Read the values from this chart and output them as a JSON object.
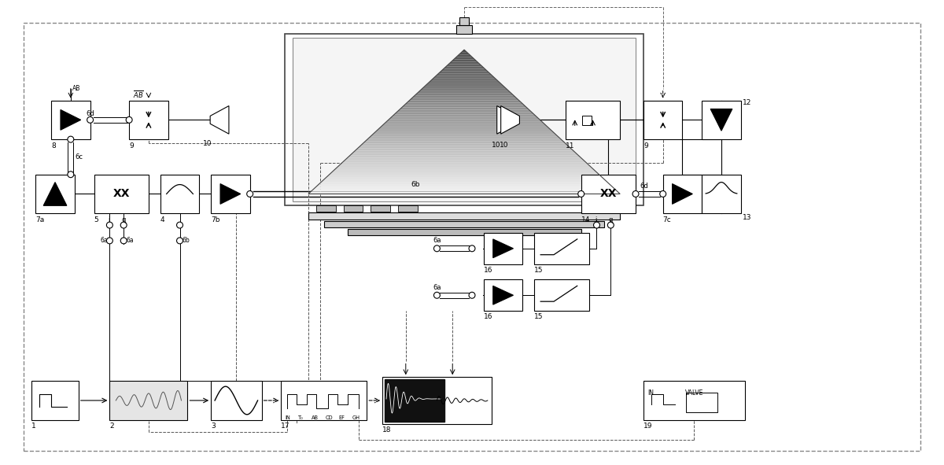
{
  "bg_color": "#ffffff",
  "fig_width": 12.0,
  "fig_height": 5.91,
  "coords": {
    "block1": [
      4,
      3.5,
      6,
      4.5
    ],
    "block2": [
      12,
      3.5,
      20,
      4.5
    ],
    "block3": [
      22,
      3.5,
      28,
      4.5
    ],
    "block17": [
      30,
      3.5,
      38,
      4.5
    ],
    "block18": [
      40,
      3.0,
      52,
      5.0
    ],
    "block19": [
      82,
      3.5,
      93,
      4.5
    ],
    "block7a": [
      4,
      22,
      9,
      27
    ],
    "block5": [
      12,
      21,
      20,
      27
    ],
    "block4": [
      22,
      21.5,
      27,
      26.5
    ],
    "block7b": [
      29,
      22,
      34,
      27
    ],
    "block14": [
      74,
      21,
      82,
      27
    ],
    "block7c": [
      84,
      22,
      89,
      27
    ],
    "block13": [
      91,
      22,
      96,
      27
    ],
    "block8": [
      4,
      32,
      9,
      37
    ],
    "block9L": [
      16,
      32,
      21,
      37
    ],
    "block10L": [
      23,
      33,
      29,
      37
    ],
    "block10R": [
      65,
      33,
      71,
      37
    ],
    "block11": [
      73,
      32,
      80,
      37
    ],
    "block9R": [
      82,
      32,
      87,
      37
    ],
    "block12": [
      91,
      32,
      96,
      37
    ],
    "block16U": [
      55,
      27,
      60,
      32
    ],
    "block15U": [
      63,
      27,
      71,
      32
    ],
    "block16L": [
      55,
      20,
      60,
      25
    ],
    "block15L": [
      63,
      20,
      71,
      25
    ]
  }
}
